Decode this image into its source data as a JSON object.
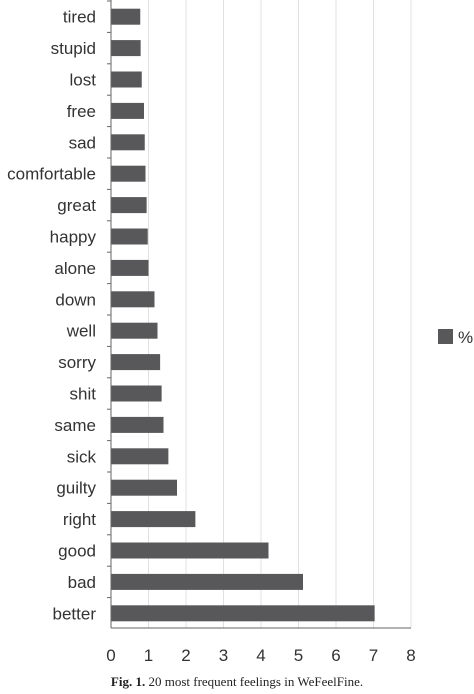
{
  "chart_data": {
    "type": "bar",
    "orientation": "horizontal",
    "categories": [
      "tired",
      "stupid",
      "lost",
      "free",
      "sad",
      "comfortable",
      "great",
      "happy",
      "alone",
      "down",
      "well",
      "sorry",
      "shit",
      "same",
      "sick",
      "guilty",
      "right",
      "good",
      "bad",
      "better"
    ],
    "series": [
      {
        "name": "%",
        "values": [
          0.78,
          0.79,
          0.82,
          0.88,
          0.9,
          0.92,
          0.95,
          0.98,
          1.0,
          1.16,
          1.24,
          1.31,
          1.35,
          1.4,
          1.53,
          1.76,
          2.25,
          4.2,
          5.12,
          7.03
        ]
      }
    ],
    "xlim": [
      0,
      8
    ],
    "x_ticks": [
      "0",
      "1",
      "2",
      "3",
      "4",
      "5",
      "6",
      "7",
      "8"
    ],
    "xlabel": "",
    "ylabel": "",
    "grid": "vertical",
    "legend": "right",
    "colors": {
      "bar": "#58585a",
      "grid": "#e0e0e0",
      "axis": "#666666",
      "text": "#333333"
    }
  },
  "caption": {
    "label": "Fig. 1.",
    "text": " 20 most frequent feelings in WeFeelFine."
  }
}
